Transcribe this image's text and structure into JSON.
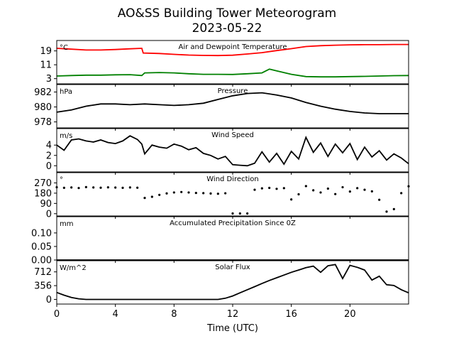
{
  "title": "AO&SS Building Tower Meteorogram",
  "subtitle": "2023-05-22",
  "chart_data": {
    "type": "line",
    "xlabel": "Time (UTC)",
    "xlim": [
      0,
      24
    ],
    "xticks": [
      "0",
      "4",
      "8",
      "12",
      "16",
      "20"
    ],
    "panels": [
      {
        "id": "temp",
        "label": "Air and Dewpoint Temperature",
        "unit": "°C",
        "ylim": [
          0,
          25
        ],
        "yticks": [
          {
            "v": 19,
            "label": "19"
          },
          {
            "v": 11,
            "label": "11"
          },
          {
            "v": 3,
            "label": "3"
          }
        ],
        "series": [
          {
            "color": "#ff0000",
            "x": [
              0,
              1,
              2,
              3,
              4,
              5,
              5.8,
              5.9,
              7,
              8,
              9,
              10,
              11,
              12,
              13,
              14,
              15,
              16,
              17,
              18,
              19,
              20,
              21,
              22,
              23,
              24
            ],
            "y": [
              20.5,
              20,
              19.5,
              19.5,
              19.8,
              20.2,
              20.5,
              17.8,
              17.5,
              17,
              16.6,
              16.4,
              16.3,
              16.5,
              17.2,
              18,
              19.2,
              20.3,
              21.5,
              22,
              22.3,
              22.5,
              22.6,
              22.6,
              22.7,
              22.7
            ]
          },
          {
            "color": "#008000",
            "x": [
              0,
              1,
              2,
              3,
              4,
              5,
              5.8,
              6,
              7,
              8,
              9,
              10,
              11,
              12,
              13,
              14,
              14.5,
              15,
              16,
              17,
              18,
              19,
              20,
              21,
              22,
              23,
              24
            ],
            "y": [
              4.5,
              4.8,
              5,
              5,
              5.2,
              5.3,
              4.8,
              6.3,
              6.5,
              6.3,
              5.8,
              5.5,
              5.5,
              5.4,
              5.8,
              6.3,
              8.5,
              7.5,
              5.5,
              4.2,
              4,
              4,
              4.2,
              4.3,
              4.5,
              4.7,
              4.8
            ]
          }
        ]
      },
      {
        "id": "pressure",
        "label": "Pressure",
        "unit": "hPa",
        "ylim": [
          977.2,
          983.0
        ],
        "yticks": [
          {
            "v": 982,
            "label": "982"
          },
          {
            "v": 980,
            "label": "980"
          },
          {
            "v": 978,
            "label": "978"
          }
        ],
        "series": [
          {
            "color": "#000000",
            "x": [
              0,
              1,
              2,
              3,
              4,
              5,
              6,
              7,
              8,
              9,
              10,
              11,
              12,
              13,
              14,
              15,
              16,
              17,
              18,
              19,
              20,
              21,
              22,
              23,
              24
            ],
            "y": [
              979.3,
              979.6,
              980.1,
              980.4,
              980.4,
              980.3,
              980.4,
              980.3,
              980.2,
              980.3,
              980.5,
              981.0,
              981.5,
              981.8,
              981.9,
              981.6,
              981.2,
              980.6,
              980.1,
              979.7,
              979.4,
              979.2,
              979.1,
              979.1,
              979.1
            ]
          }
        ]
      },
      {
        "id": "wind_speed",
        "label": "Wind Speed",
        "unit": "m/s",
        "ylim": [
          -1.2,
          7.2
        ],
        "yticks": [
          {
            "v": 4,
            "label": "4"
          },
          {
            "v": 2,
            "label": "2"
          },
          {
            "v": 0,
            "label": "0"
          }
        ],
        "series": [
          {
            "color": "#000000",
            "x": [
              0,
              0.5,
              1,
              1.5,
              2,
              2.5,
              3,
              3.5,
              4,
              4.5,
              5,
              5.5,
              5.8,
              6,
              6.5,
              7,
              7.5,
              8,
              8.5,
              9,
              9.5,
              10,
              10.5,
              11,
              11.5,
              12,
              12.5,
              13,
              13.5,
              14,
              14.5,
              15,
              15.5,
              16,
              16.5,
              17,
              17.5,
              18,
              18.5,
              19,
              19.5,
              20,
              20.5,
              21,
              21.5,
              22,
              22.5,
              23,
              23.5,
              24
            ],
            "y": [
              4,
              3,
              5,
              5.2,
              4.8,
              4.6,
              5,
              4.5,
              4.3,
              4.8,
              5.8,
              5.1,
              4.2,
              2.3,
              4,
              3.6,
              3.4,
              4.2,
              3.8,
              3.1,
              3.5,
              2.4,
              2,
              1.3,
              1.8,
              0.2,
              0.1,
              0,
              0.5,
              2.7,
              0.7,
              2.4,
              0.3,
              2.8,
              1.3,
              5.5,
              2.6,
              4.4,
              1.8,
              4.2,
              2.5,
              4.3,
              1.2,
              3.6,
              1.7,
              2.9,
              1.1,
              2.3,
              1.5,
              0.4
            ]
          }
        ]
      },
      {
        "id": "wind_dir",
        "label": "Wind Direction",
        "unit": "°",
        "ylim": [
          -20,
          360
        ],
        "yticks": [
          {
            "v": 270,
            "label": "270"
          },
          {
            "v": 180,
            "label": "180"
          },
          {
            "v": 90,
            "label": "90"
          },
          {
            "v": 0,
            "label": "0"
          }
        ],
        "points": "dots",
        "series": [
          {
            "color": "#000000",
            "x": [
              0,
              0.5,
              1,
              1.5,
              2,
              2.5,
              3,
              3.5,
              4,
              4.5,
              5,
              5.5,
              6,
              6.5,
              7,
              7.5,
              8,
              8.5,
              9,
              9.5,
              10,
              10.5,
              11,
              11.5,
              12,
              12.5,
              13,
              13.5,
              14,
              14.5,
              15,
              15.5,
              16,
              16.5,
              17,
              17.5,
              18,
              18.5,
              19,
              19.5,
              20,
              20.5,
              21,
              21.5,
              22,
              22.5,
              23,
              23.5,
              24
            ],
            "y": [
              232,
              227,
              230,
              225,
              233,
              230,
              228,
              231,
              229,
              227,
              230,
              228,
              138,
              148,
              165,
              178,
              186,
              190,
              186,
              182,
              180,
              177,
              175,
              179,
              2,
              2,
              2,
              210,
              222,
              226,
              218,
              224,
              125,
              170,
              242,
              205,
              186,
              220,
              172,
              232,
              194,
              224,
              210,
              196,
              122,
              18,
              40,
              180,
              240
            ]
          }
        ]
      },
      {
        "id": "precip",
        "label": "Accumulated Precipitation Since 0Z",
        "unit": "mm",
        "ylim": [
          0,
          0.16
        ],
        "yticks": [
          {
            "v": 0.1,
            "label": "0.10"
          },
          {
            "v": 0.05,
            "label": "0.05"
          },
          {
            "v": 0.0,
            "label": "0.00"
          }
        ],
        "series": [
          {
            "color": "#000000",
            "x": [
              0,
              24
            ],
            "y": [
              0,
              0
            ]
          }
        ]
      },
      {
        "id": "solar",
        "label": "Solar Flux",
        "unit": "W/m^2",
        "ylim": [
          -120,
          1000
        ],
        "yticks": [
          {
            "v": 712,
            "label": "712"
          },
          {
            "v": 356,
            "label": "356"
          },
          {
            "v": 0,
            "label": "0"
          }
        ],
        "series": [
          {
            "color": "#000000",
            "x": [
              0,
              0.5,
              1,
              1.5,
              2,
              4,
              6,
              8,
              10,
              11,
              11.5,
              12,
              12.5,
              13,
              13.5,
              14,
              14.5,
              15,
              15.5,
              16,
              16.5,
              17,
              17.5,
              18,
              18.5,
              19,
              19.5,
              20,
              20.5,
              21,
              21.5,
              22,
              22.5,
              23,
              23.5,
              24
            ],
            "y": [
              180,
              110,
              50,
              15,
              0,
              0,
              0,
              0,
              0,
              0,
              30,
              90,
              170,
              250,
              330,
              410,
              490,
              560,
              630,
              700,
              760,
              820,
              860,
              700,
              870,
              900,
              540,
              880,
              830,
              760,
              500,
              600,
              380,
              360,
              250,
              170
            ]
          }
        ]
      }
    ]
  }
}
